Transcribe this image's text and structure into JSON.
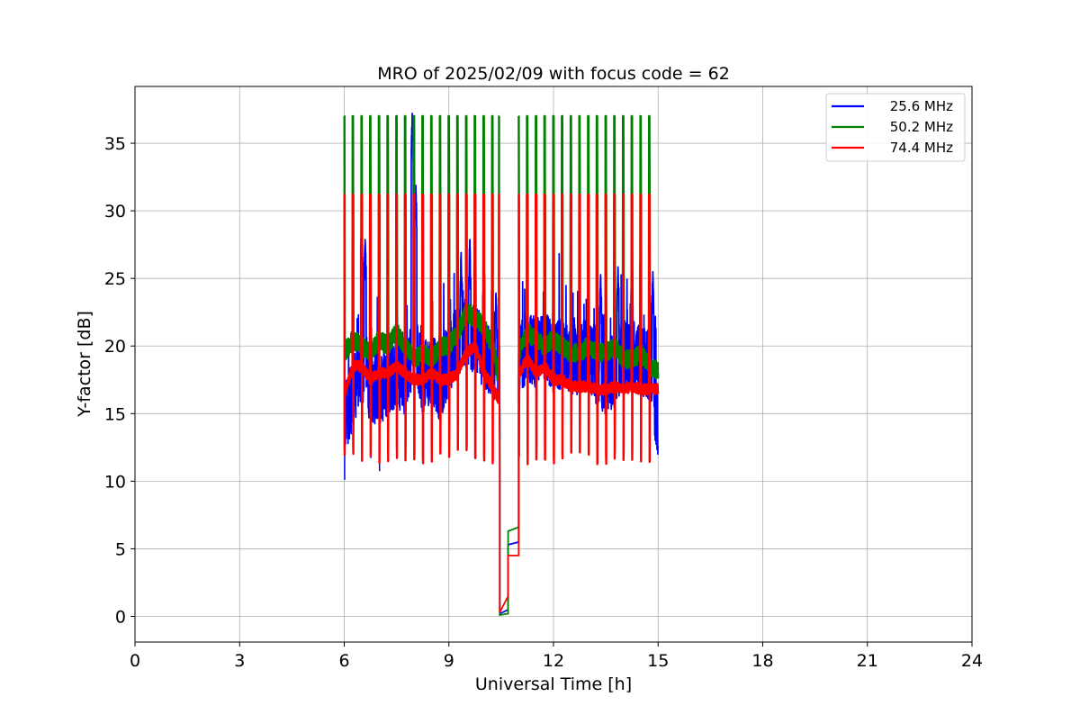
{
  "chart_data": {
    "type": "line",
    "title": "MRO of 2025/02/09 with focus code = 62",
    "xlabel": "Universal Time [h]",
    "ylabel": "Y-factor [dB]",
    "xlim": [
      0,
      24
    ],
    "ylim": [
      -1.9,
      39.2
    ],
    "xticks": [
      0,
      3,
      6,
      9,
      12,
      15,
      18,
      21,
      24
    ],
    "yticks": [
      0,
      5,
      10,
      15,
      20,
      25,
      30,
      35
    ],
    "grid": true,
    "legend_position": "top-right",
    "data_start_h": 6.0,
    "data_end_h": 15.0,
    "gap_start_h": 10.45,
    "gap_end_h": 11.0,
    "series": [
      {
        "name": "25.6 MHz",
        "color": "#0000ff",
        "baseline": [
          [
            6.0,
            14.5
          ],
          [
            6.25,
            16.5
          ],
          [
            6.5,
            18.5
          ],
          [
            6.75,
            17.0
          ],
          [
            7.0,
            16.5
          ],
          [
            7.25,
            17.5
          ],
          [
            7.5,
            18.0
          ],
          [
            7.75,
            17.5
          ],
          [
            8.0,
            20.0
          ],
          [
            8.25,
            17.5
          ],
          [
            8.5,
            18.5
          ],
          [
            8.75,
            17.0
          ],
          [
            9.0,
            19.0
          ],
          [
            9.25,
            20.5
          ],
          [
            9.5,
            21.0
          ],
          [
            9.75,
            20.5
          ],
          [
            10.0,
            19.5
          ],
          [
            10.25,
            18.5
          ],
          [
            10.45,
            18.0
          ],
          [
            11.0,
            19.0
          ],
          [
            11.25,
            20.0
          ],
          [
            11.5,
            19.5
          ],
          [
            11.75,
            20.0
          ],
          [
            12.0,
            19.0
          ],
          [
            12.25,
            19.5
          ],
          [
            12.5,
            19.0
          ],
          [
            12.75,
            19.0
          ],
          [
            13.0,
            19.5
          ],
          [
            13.25,
            18.0
          ],
          [
            13.5,
            17.5
          ],
          [
            13.75,
            18.0
          ],
          [
            14.0,
            19.0
          ],
          [
            14.25,
            19.5
          ],
          [
            14.5,
            19.0
          ],
          [
            14.75,
            18.5
          ],
          [
            15.0,
            14.0
          ]
        ],
        "jitter": 2.6,
        "peaks": [
          [
            6.5,
            29.5
          ],
          [
            6.6,
            28.0
          ],
          [
            7.95,
            37.3
          ],
          [
            8.05,
            32.0
          ],
          [
            9.35,
            27.0
          ],
          [
            9.6,
            28.0
          ],
          [
            9.75,
            29.0
          ],
          [
            10.0,
            27.0
          ],
          [
            10.35,
            24.0
          ],
          [
            12.5,
            23.5
          ],
          [
            13.35,
            25.5
          ],
          [
            13.85,
            26.0
          ],
          [
            14.25,
            27.8
          ],
          [
            14.85,
            25.5
          ]
        ]
      },
      {
        "name": "50.2 MHz",
        "color": "#008000",
        "baseline": [
          [
            6.0,
            19.5
          ],
          [
            6.25,
            20.5
          ],
          [
            6.5,
            20.0
          ],
          [
            6.75,
            19.5
          ],
          [
            7.0,
            20.5
          ],
          [
            7.25,
            20.0
          ],
          [
            7.5,
            21.0
          ],
          [
            7.75,
            20.0
          ],
          [
            8.0,
            19.0
          ],
          [
            8.25,
            19.5
          ],
          [
            8.5,
            19.0
          ],
          [
            8.75,
            20.0
          ],
          [
            9.0,
            20.0
          ],
          [
            9.25,
            21.0
          ],
          [
            9.5,
            22.5
          ],
          [
            9.75,
            22.0
          ],
          [
            10.0,
            21.5
          ],
          [
            10.25,
            20.0
          ],
          [
            10.45,
            17.5
          ],
          [
            11.0,
            19.5
          ],
          [
            11.25,
            21.0
          ],
          [
            11.5,
            20.5
          ],
          [
            11.75,
            20.0
          ],
          [
            12.0,
            20.5
          ],
          [
            12.25,
            20.0
          ],
          [
            12.5,
            19.5
          ],
          [
            12.75,
            19.5
          ],
          [
            13.0,
            20.0
          ],
          [
            13.25,
            19.5
          ],
          [
            13.5,
            19.5
          ],
          [
            13.75,
            20.0
          ],
          [
            14.0,
            19.0
          ],
          [
            14.25,
            19.0
          ],
          [
            14.5,
            19.5
          ],
          [
            14.75,
            18.5
          ],
          [
            15.0,
            18.2
          ]
        ],
        "jitter": 0.7,
        "spike_top": 37.0,
        "spike_bottom": 31.2
      },
      {
        "name": "74.4 MHz",
        "color": "#ff0000",
        "baseline": [
          [
            6.0,
            16.5
          ],
          [
            6.25,
            18.5
          ],
          [
            6.5,
            18.5
          ],
          [
            6.75,
            17.5
          ],
          [
            7.0,
            18.0
          ],
          [
            7.25,
            18.0
          ],
          [
            7.5,
            18.5
          ],
          [
            7.75,
            18.0
          ],
          [
            8.0,
            17.5
          ],
          [
            8.25,
            17.5
          ],
          [
            8.5,
            18.0
          ],
          [
            8.75,
            17.5
          ],
          [
            9.0,
            17.5
          ],
          [
            9.25,
            18.0
          ],
          [
            9.5,
            19.5
          ],
          [
            9.75,
            20.0
          ],
          [
            10.0,
            18.0
          ],
          [
            10.25,
            17.0
          ],
          [
            10.45,
            16.0
          ],
          [
            11.0,
            18.0
          ],
          [
            11.25,
            19.0
          ],
          [
            11.5,
            18.0
          ],
          [
            11.75,
            18.5
          ],
          [
            12.0,
            17.5
          ],
          [
            12.25,
            17.5
          ],
          [
            12.5,
            17.0
          ],
          [
            12.75,
            17.0
          ],
          [
            13.0,
            17.0
          ],
          [
            13.25,
            16.8
          ],
          [
            13.5,
            16.8
          ],
          [
            13.75,
            17.0
          ],
          [
            14.0,
            16.8
          ],
          [
            14.25,
            17.0
          ],
          [
            14.5,
            16.8
          ],
          [
            14.75,
            16.8
          ],
          [
            15.0,
            16.8
          ]
        ],
        "jitter": 0.4,
        "spike_top": 31.2,
        "spike_bottom": 12.0
      }
    ],
    "spike_times_h": [
      6.0,
      6.25,
      6.5,
      6.75,
      7.0,
      7.25,
      7.5,
      7.75,
      8.0,
      8.25,
      8.5,
      8.75,
      9.0,
      9.25,
      9.5,
      9.75,
      10.0,
      10.25,
      10.45,
      11.0,
      11.25,
      11.5,
      11.75,
      12.0,
      12.25,
      12.5,
      12.75,
      13.0,
      13.25,
      13.5,
      13.75,
      14.0,
      14.25,
      14.5,
      14.75
    ],
    "gap_trace": [
      {
        "series": 0,
        "points": [
          [
            10.45,
            20.0
          ],
          [
            10.46,
            11.7
          ],
          [
            10.46,
            0.2
          ],
          [
            10.7,
            0.5
          ],
          [
            10.7,
            5.3
          ],
          [
            11.0,
            5.5
          ],
          [
            11.0,
            19.0
          ]
        ]
      },
      {
        "series": 1,
        "points": [
          [
            10.45,
            17.5
          ],
          [
            10.46,
            14.3
          ],
          [
            10.46,
            0.1
          ],
          [
            10.7,
            0.2
          ],
          [
            10.7,
            6.3
          ],
          [
            11.0,
            6.6
          ],
          [
            11.0,
            19.5
          ]
        ]
      },
      {
        "series": 2,
        "points": [
          [
            10.45,
            16.0
          ],
          [
            10.46,
            10.8
          ],
          [
            10.46,
            0.3
          ],
          [
            10.7,
            1.5
          ],
          [
            10.7,
            4.5
          ],
          [
            11.0,
            4.5
          ],
          [
            11.0,
            18.0
          ]
        ]
      }
    ]
  }
}
